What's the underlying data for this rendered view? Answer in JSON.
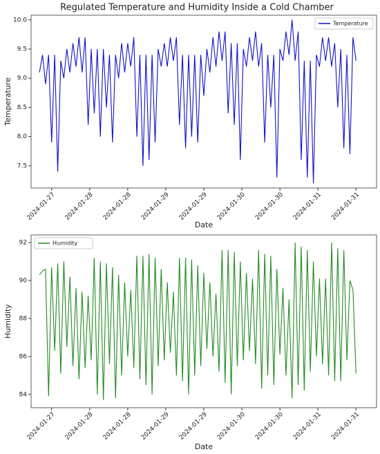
{
  "chart_data": [
    {
      "type": "line",
      "title": "Regulated Temperature and Humidity Inside a Cold Chamber",
      "xlabel": "Date",
      "ylabel": "Temperature",
      "legend": "upper right",
      "x": [
        -0.16,
        -0.12,
        -0.08,
        -0.04,
        0,
        0.04,
        0.08,
        0.12,
        0.16,
        0.2,
        0.24,
        0.28,
        0.32,
        0.36,
        0.4,
        0.44,
        0.48,
        0.52,
        0.56,
        0.6,
        0.64,
        0.68,
        0.72,
        0.76,
        0.8,
        0.84,
        0.88,
        0.92,
        0.96,
        1.0,
        1.04,
        1.08,
        1.12,
        1.16,
        1.2,
        1.24,
        1.28,
        1.32,
        1.36,
        1.4,
        1.44,
        1.48,
        1.52,
        1.56,
        1.6,
        1.64,
        1.68,
        1.72,
        1.76,
        1.8,
        1.84,
        1.88,
        1.92,
        1.96,
        2.0,
        2.04,
        2.08,
        2.12,
        2.16,
        2.2,
        2.24,
        2.28,
        2.32,
        2.36,
        2.4,
        2.44,
        2.48,
        2.52,
        2.56,
        2.6,
        2.64,
        2.68,
        2.72,
        2.76,
        2.8,
        2.84,
        2.88,
        2.92,
        2.96,
        3.0,
        3.04,
        3.08,
        3.12,
        3.16,
        3.2,
        3.24,
        3.28,
        3.32,
        3.36,
        3.4,
        3.44,
        3.48,
        3.52,
        3.56,
        3.6,
        3.64,
        3.68,
        3.72,
        3.76,
        3.8,
        3.84,
        3.88,
        3.92,
        3.96,
        4.0
      ],
      "series": [
        {
          "name": "Temperature",
          "color": "#1010c8",
          "values": [
            9.1,
            9.4,
            8.9,
            9.4,
            7.9,
            9.4,
            7.4,
            9.3,
            9.0,
            9.5,
            9.1,
            9.6,
            9.2,
            9.7,
            9.1,
            9.7,
            8.2,
            9.5,
            8.4,
            9.5,
            8.0,
            9.5,
            8.5,
            9.4,
            7.9,
            9.4,
            9.0,
            9.6,
            9.1,
            9.6,
            9.2,
            9.7,
            8.0,
            9.4,
            7.5,
            9.4,
            7.6,
            9.4,
            7.9,
            9.5,
            9.2,
            9.6,
            9.2,
            9.7,
            9.3,
            9.7,
            8.2,
            9.4,
            7.8,
            9.4,
            8.0,
            9.4,
            7.9,
            9.4,
            8.7,
            9.5,
            9.1,
            9.7,
            9.2,
            9.8,
            9.3,
            9.8,
            8.4,
            9.6,
            8.2,
            9.6,
            7.6,
            9.5,
            9.2,
            9.7,
            9.3,
            9.8,
            9.2,
            9.6,
            7.9,
            9.4,
            8.5,
            9.4,
            7.3,
            9.5,
            9.3,
            9.8,
            9.4,
            10.0,
            9.3,
            9.8,
            7.6,
            9.3,
            7.3,
            9.3,
            7.2,
            9.4,
            9.2,
            9.7,
            9.3,
            9.7,
            9.2,
            9.6,
            8.5,
            9.5,
            7.8,
            9.4,
            7.7,
            9.7,
            9.3
          ]
        }
      ],
      "xlim": [
        -0.27,
        4.27
      ],
      "ylim": [
        7.12,
        10.08
      ],
      "xticks": [
        {
          "value": 0,
          "label": "2024-01-27"
        },
        {
          "value": 0.5,
          "label": "2024-01-28"
        },
        {
          "value": 1,
          "label": "2024-01-28"
        },
        {
          "value": 1.5,
          "label": "2024-01-29"
        },
        {
          "value": 2,
          "label": "2024-01-29"
        },
        {
          "value": 2.5,
          "label": "2024-01-30"
        },
        {
          "value": 3,
          "label": "2024-01-30"
        },
        {
          "value": 3.5,
          "label": "2024-01-31"
        },
        {
          "value": 4,
          "label": "2024-01-31"
        }
      ],
      "yticks": [
        7.5,
        {
          "value": 8,
          "label": "8.0"
        },
        8.5,
        {
          "value": 9,
          "label": "9.0"
        },
        9.5,
        {
          "value": 10,
          "label": "10.0"
        }
      ]
    },
    {
      "type": "line",
      "xlabel": "Date",
      "ylabel": "Humidity",
      "legend": "upper left",
      "x": [
        -0.16,
        -0.12,
        -0.08,
        -0.04,
        0,
        0.04,
        0.08,
        0.12,
        0.16,
        0.2,
        0.24,
        0.28,
        0.32,
        0.36,
        0.4,
        0.44,
        0.48,
        0.52,
        0.56,
        0.6,
        0.64,
        0.68,
        0.72,
        0.76,
        0.8,
        0.84,
        0.88,
        0.92,
        0.96,
        1.0,
        1.04,
        1.08,
        1.12,
        1.16,
        1.2,
        1.24,
        1.28,
        1.32,
        1.36,
        1.4,
        1.44,
        1.48,
        1.52,
        1.56,
        1.6,
        1.64,
        1.68,
        1.72,
        1.76,
        1.8,
        1.84,
        1.88,
        1.92,
        1.96,
        2.0,
        2.04,
        2.08,
        2.12,
        2.16,
        2.2,
        2.24,
        2.28,
        2.32,
        2.36,
        2.4,
        2.44,
        2.48,
        2.52,
        2.56,
        2.6,
        2.64,
        2.68,
        2.72,
        2.76,
        2.8,
        2.84,
        2.88,
        2.92,
        2.96,
        3.0,
        3.04,
        3.08,
        3.12,
        3.16,
        3.2,
        3.24,
        3.28,
        3.32,
        3.36,
        3.4,
        3.44,
        3.48,
        3.52,
        3.56,
        3.6,
        3.64,
        3.68,
        3.72,
        3.76,
        3.8,
        3.84,
        3.88,
        3.92,
        3.96,
        4.0
      ],
      "series": [
        {
          "name": "Humidity",
          "color": "#228b22",
          "values": [
            90.3,
            90.5,
            90.6,
            83.9,
            90.7,
            86.3,
            90.9,
            85.1,
            91.0,
            86.5,
            90.2,
            85.5,
            89.6,
            84.8,
            89.4,
            85.4,
            89.2,
            85.8,
            91.2,
            84.0,
            91.0,
            83.7,
            90.9,
            85.6,
            90.7,
            83.8,
            90.3,
            85.0,
            89.9,
            86.0,
            89.5,
            85.4,
            91.3,
            84.8,
            91.3,
            84.5,
            91.4,
            84.0,
            91.2,
            85.5,
            90.6,
            85.8,
            89.9,
            86.2,
            89.4,
            85.0,
            91.2,
            84.7,
            91.2,
            84.0,
            91.1,
            85.0,
            90.8,
            85.5,
            90.4,
            86.4,
            89.9,
            86.0,
            89.3,
            85.2,
            91.6,
            84.6,
            91.6,
            84.0,
            91.5,
            85.5,
            91.0,
            85.8,
            90.4,
            86.3,
            90.1,
            85.6,
            91.6,
            84.3,
            91.4,
            85.0,
            91.3,
            84.5,
            90.6,
            86.1,
            89.6,
            85.0,
            89.0,
            83.8,
            92.0,
            84.5,
            91.8,
            84.2,
            91.6,
            85.2,
            91.0,
            86.0,
            90.1,
            85.6,
            90.1,
            85.0,
            92.0,
            84.7,
            91.7,
            84.7,
            91.6,
            85.8,
            90.0,
            89.5,
            85.1
          ]
        }
      ],
      "xlim": [
        -0.27,
        4.27
      ],
      "ylim": [
        83.3,
        92.4
      ],
      "xticks": [
        {
          "value": 0,
          "label": "2024-01-27"
        },
        {
          "value": 0.5,
          "label": "2024-01-28"
        },
        {
          "value": 1,
          "label": "2024-01-28"
        },
        {
          "value": 1.5,
          "label": "2024-01-29"
        },
        {
          "value": 2,
          "label": "2024-01-29"
        },
        {
          "value": 2.5,
          "label": "2024-01-30"
        },
        {
          "value": 3,
          "label": "2024-01-30"
        },
        {
          "value": 3.5,
          "label": "2024-01-31"
        },
        {
          "value": 4,
          "label": "2024-01-31"
        }
      ],
      "yticks": [
        84,
        86,
        88,
        90,
        92
      ]
    }
  ]
}
